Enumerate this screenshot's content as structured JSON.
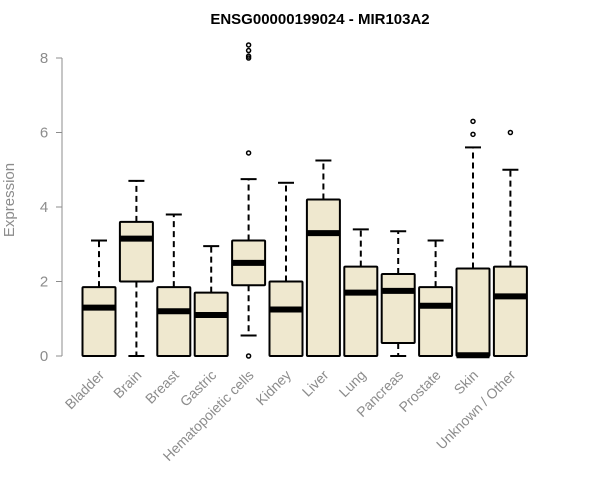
{
  "chart_data": {
    "type": "boxplot",
    "title": "ENSG00000199024 - MIR103A2",
    "xlabel": "",
    "ylabel": "Expression",
    "ylim": [
      0,
      8
    ],
    "yticks": [
      0,
      2,
      4,
      6,
      8
    ],
    "grid": false,
    "box_color": "#efe8cf",
    "categories": [
      "Bladder",
      "Brain",
      "Breast",
      "Gastric",
      "Hematopoietic cells",
      "Kidney",
      "Liver",
      "Lung",
      "Pancreas",
      "Prostate",
      "Skin",
      "Unknown / Other"
    ],
    "boxes": [
      {
        "whisker_low": 0,
        "q1": 0,
        "median": 1.3,
        "q3": 1.85,
        "whisker_high": 3.1,
        "outliers": []
      },
      {
        "whisker_low": 0,
        "q1": 2.0,
        "median": 3.15,
        "q3": 3.6,
        "whisker_high": 4.7,
        "outliers": []
      },
      {
        "whisker_low": 0,
        "q1": 0,
        "median": 1.2,
        "q3": 1.85,
        "whisker_high": 3.8,
        "outliers": []
      },
      {
        "whisker_low": 0,
        "q1": 0,
        "median": 1.1,
        "q3": 1.7,
        "whisker_high": 2.95,
        "outliers": []
      },
      {
        "whisker_low": 0.55,
        "q1": 1.9,
        "median": 2.5,
        "q3": 3.1,
        "whisker_high": 4.75,
        "outliers": [
          0,
          5.45,
          8.0,
          8.05,
          8.2,
          8.35
        ]
      },
      {
        "whisker_low": 0,
        "q1": 0,
        "median": 1.25,
        "q3": 2.0,
        "whisker_high": 4.65,
        "outliers": []
      },
      {
        "whisker_low": 0,
        "q1": 0,
        "median": 3.3,
        "q3": 4.2,
        "whisker_high": 5.25,
        "outliers": []
      },
      {
        "whisker_low": 0,
        "q1": 0,
        "median": 1.7,
        "q3": 2.4,
        "whisker_high": 3.4,
        "outliers": []
      },
      {
        "whisker_low": 0,
        "q1": 0.35,
        "median": 1.75,
        "q3": 2.2,
        "whisker_high": 3.35,
        "outliers": []
      },
      {
        "whisker_low": 0,
        "q1": 0,
        "median": 1.35,
        "q3": 1.85,
        "whisker_high": 3.1,
        "outliers": []
      },
      {
        "whisker_low": 0,
        "q1": 0,
        "median": 0.02,
        "q3": 2.35,
        "whisker_high": 5.6,
        "outliers": [
          5.95,
          6.3
        ]
      },
      {
        "whisker_low": 0,
        "q1": 0,
        "median": 1.6,
        "q3": 2.4,
        "whisker_high": 5.0,
        "outliers": [
          6.0
        ]
      }
    ]
  }
}
